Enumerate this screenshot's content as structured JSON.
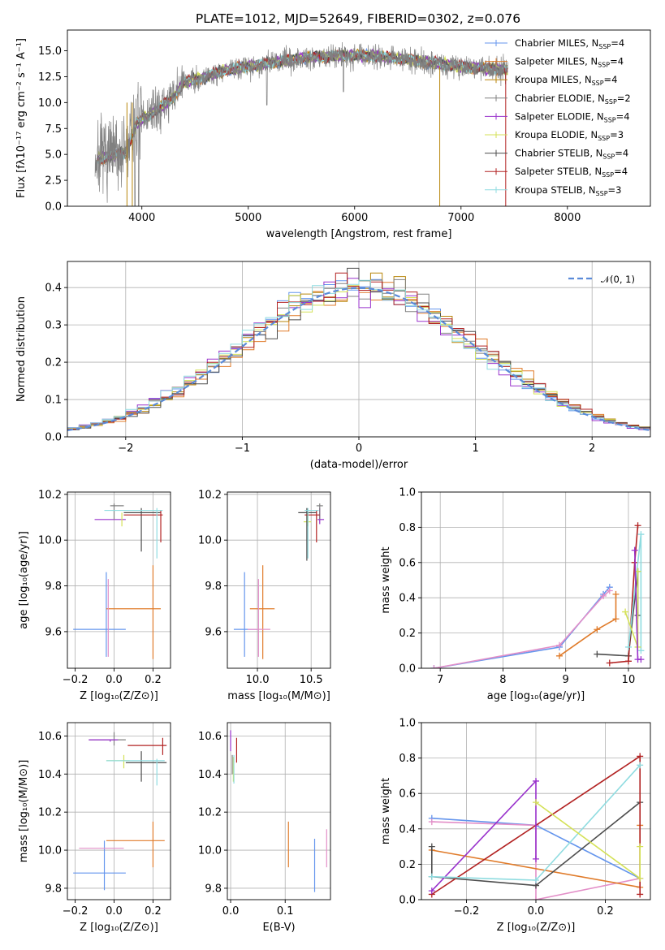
{
  "figure": {
    "title": "PLATE=1012, MJD=52649, FIBERID=0302, z=0.076"
  },
  "palette": {
    "blue": "#6495ed",
    "orange": "#e07b2a",
    "olive": "#b8860b",
    "gray": "#808080",
    "purple": "#9932cc",
    "yellowgreen": "#d4e157",
    "darkgray": "#4d4d4d",
    "darkred": "#b22222",
    "cyan": "#8fdce0",
    "pink": "#e38fc8"
  },
  "models": [
    {
      "name": "Chabrier MILES",
      "n": "4",
      "color": "#6495ed"
    },
    {
      "name": "Salpeter MILES",
      "n": "4",
      "color": "#e07b2a"
    },
    {
      "name": "Kroupa MILES",
      "n": "4",
      "color": "#b8860b"
    },
    {
      "name": "Chabrier ELODIE",
      "n": "2",
      "color": "#808080"
    },
    {
      "name": "Salpeter ELODIE",
      "n": "4",
      "color": "#9932cc"
    },
    {
      "name": "Kroupa ELODIE",
      "n": "3",
      "color": "#d4e157"
    },
    {
      "name": "Chabrier STELIB",
      "n": "4",
      "color": "#4d4d4d"
    },
    {
      "name": "Salpeter STELIB",
      "n": "4",
      "color": "#b22222"
    },
    {
      "name": "Kroupa STELIB",
      "n": "3",
      "color": "#8fdce0"
    }
  ],
  "legend_prefix_n": "N",
  "legend_sub_ssp": "SSP",
  "legend_eq": "=",
  "chart_data": [
    {
      "id": "spectrum",
      "type": "line",
      "xlabel": "wavelength [Angstrom, rest frame]",
      "ylabel": "Flux [fλ10⁻¹⁷ erg cm⁻² s⁻¹ A⁻¹]",
      "xlim": [
        3300,
        8780
      ],
      "ylim": [
        0,
        17
      ],
      "xticks": [
        4000,
        5000,
        6000,
        7000,
        8000
      ],
      "yticks": [
        0.0,
        2.5,
        5.0,
        7.5,
        10.0,
        12.5,
        15.0
      ],
      "grid": false,
      "legend": "right",
      "continuum": [
        [
          3550,
          4.5
        ],
        [
          3700,
          4.8
        ],
        [
          3850,
          5.2
        ],
        [
          3950,
          8.0
        ],
        [
          4100,
          9.0
        ],
        [
          4300,
          10.5
        ],
        [
          4400,
          12.0
        ],
        [
          4600,
          12.5
        ],
        [
          4800,
          13.2
        ],
        [
          5000,
          13.5
        ],
        [
          5200,
          13.8
        ],
        [
          5500,
          14.3
        ],
        [
          5800,
          14.5
        ],
        [
          6000,
          14.6
        ],
        [
          6300,
          14.4
        ],
        [
          6600,
          14.0
        ],
        [
          6900,
          13.6
        ],
        [
          7100,
          13.4
        ],
        [
          7400,
          13.2
        ]
      ],
      "observed_range": [
        3560,
        7440
      ]
    },
    {
      "id": "residuals",
      "type": "histogram",
      "xlabel": "(data-model)/error",
      "ylabel": "Normed distribution",
      "xlim": [
        -2.5,
        2.5
      ],
      "ylim": [
        0,
        0.47
      ],
      "xticks": [
        -2,
        -1,
        0,
        1,
        2
      ],
      "yticks": [
        0.0,
        0.1,
        0.2,
        0.3,
        0.4
      ],
      "grid": true,
      "legend": "top-right",
      "reference_label": "𝒩(0, 1)",
      "bin_width": 0.1
    },
    {
      "id": "age_vs_Z",
      "type": "errorbar",
      "xlabel": "Z [log₁₀(Z/Z⊙)]",
      "ylabel": "age  [log₁₀(age/yr)]",
      "xlim": [
        -0.24,
        0.29
      ],
      "ylim": [
        9.44,
        10.21
      ],
      "xticks": [
        -0.2,
        0.0,
        0.2
      ],
      "xticklabels": [
        "−0.2",
        "0.0",
        "0.2"
      ],
      "yticks": [
        9.6,
        9.8,
        10.0,
        10.2
      ],
      "grid": true,
      "points": [
        {
          "x": -0.05,
          "y": 9.61,
          "xlo": -0.21,
          "xhi": 0.06,
          "ylo": 9.61,
          "yhi": 9.61,
          "color": "#6495ed"
        },
        {
          "x": -0.04,
          "y": 9.67,
          "xlo": -0.04,
          "xhi": -0.04,
          "ylo": 9.49,
          "yhi": 9.86,
          "color": "#6495ed"
        },
        {
          "x": 0.2,
          "y": 9.7,
          "xlo": -0.04,
          "xhi": 0.24,
          "ylo": 9.7,
          "yhi": 9.7,
          "color": "#e07b2a"
        },
        {
          "x": 0.2,
          "y": 9.7,
          "xlo": 0.2,
          "xhi": 0.2,
          "ylo": 9.48,
          "yhi": 9.89,
          "color": "#e07b2a"
        },
        {
          "x": -0.03,
          "y": 9.61,
          "xlo": -0.03,
          "xhi": -0.03,
          "ylo": 9.49,
          "yhi": 9.83,
          "color": "#e38fc8"
        },
        {
          "x": 0.0,
          "y": 10.09,
          "xlo": -0.1,
          "xhi": 0.06,
          "ylo": 10.09,
          "yhi": 10.09,
          "color": "#9932cc"
        },
        {
          "x": 0.0,
          "y": 10.15,
          "xlo": -0.02,
          "xhi": 0.05,
          "ylo": 10.09,
          "yhi": 10.16,
          "color": "#808080"
        },
        {
          "x": 0.04,
          "y": 10.08,
          "xlo": 0.04,
          "xhi": 0.04,
          "ylo": 10.06,
          "yhi": 10.12,
          "color": "#d4e157"
        },
        {
          "x": 0.14,
          "y": 10.12,
          "xlo": 0.05,
          "xhi": 0.24,
          "ylo": 9.95,
          "yhi": 10.14,
          "color": "#4d4d4d"
        },
        {
          "x": 0.24,
          "y": 10.11,
          "xlo": 0.05,
          "xhi": 0.25,
          "ylo": 9.99,
          "yhi": 10.13,
          "color": "#b22222"
        },
        {
          "x": 0.22,
          "y": 10.13,
          "xlo": -0.05,
          "xhi": 0.25,
          "ylo": 9.92,
          "yhi": 10.14,
          "color": "#8fdce0"
        }
      ]
    },
    {
      "id": "age_vs_mass",
      "type": "errorbar",
      "xlabel": "mass [log₁₀(M/M⊙)]",
      "ylabel": "",
      "xlim": [
        9.72,
        10.68
      ],
      "ylim": [
        9.44,
        10.21
      ],
      "xticks": [
        10.0,
        10.5
      ],
      "yticks": [
        9.6,
        9.8,
        10.0,
        10.2
      ],
      "grid": true,
      "points": [
        {
          "x": 9.88,
          "y": 9.61,
          "xlo": 9.78,
          "xhi": 10.0,
          "ylo": 9.49,
          "yhi": 9.86,
          "color": "#6495ed"
        },
        {
          "x": 10.05,
          "y": 9.7,
          "xlo": 9.93,
          "xhi": 10.16,
          "ylo": 9.48,
          "yhi": 9.89,
          "color": "#e07b2a"
        },
        {
          "x": 10.01,
          "y": 9.61,
          "xlo": 9.91,
          "xhi": 10.12,
          "ylo": 9.49,
          "yhi": 9.83,
          "color": "#e38fc8"
        },
        {
          "x": 10.58,
          "y": 10.09,
          "xlo": 10.56,
          "xhi": 10.62,
          "ylo": 10.07,
          "yhi": 10.14,
          "color": "#9932cc"
        },
        {
          "x": 10.58,
          "y": 10.15,
          "xlo": 10.55,
          "xhi": 10.61,
          "ylo": 10.09,
          "yhi": 10.16,
          "color": "#808080"
        },
        {
          "x": 10.47,
          "y": 10.08,
          "xlo": 10.43,
          "xhi": 10.5,
          "ylo": 10.06,
          "yhi": 10.12,
          "color": "#d4e157"
        },
        {
          "x": 10.46,
          "y": 10.12,
          "xlo": 10.38,
          "xhi": 10.55,
          "ylo": 9.91,
          "yhi": 10.14,
          "color": "#4d4d4d"
        },
        {
          "x": 10.55,
          "y": 10.11,
          "xlo": 10.44,
          "xhi": 10.58,
          "ylo": 9.99,
          "yhi": 10.13,
          "color": "#b22222"
        },
        {
          "x": 10.47,
          "y": 10.13,
          "xlo": 10.44,
          "xhi": 10.57,
          "ylo": 9.92,
          "yhi": 10.14,
          "color": "#8fdce0"
        }
      ]
    },
    {
      "id": "weight_vs_age",
      "type": "line",
      "xlabel": "age  [log₁₀(age/yr)]",
      "ylabel": "mass weight",
      "xlim": [
        6.7,
        10.35
      ],
      "ylim": [
        0,
        1.0
      ],
      "xticks": [
        7,
        8,
        9,
        10
      ],
      "yticks": [
        0.0,
        0.2,
        0.4,
        0.6,
        0.8,
        1.0
      ],
      "grid": true,
      "series": [
        {
          "color": "#6495ed",
          "x": [
            6.9,
            8.9,
            9.6,
            9.7
          ],
          "y": [
            0.0,
            0.12,
            0.42,
            0.46
          ]
        },
        {
          "color": "#e38fc8",
          "x": [
            6.9,
            8.9,
            9.6,
            9.7
          ],
          "y": [
            0.0,
            0.13,
            0.41,
            0.44
          ]
        },
        {
          "color": "#e07b2a",
          "x": [
            8.9,
            9.5,
            9.8,
            9.8
          ],
          "y": [
            0.07,
            0.22,
            0.28,
            0.42
          ]
        },
        {
          "color": "#4d4d4d",
          "x": [
            9.5,
            10.0,
            10.15,
            10.15
          ],
          "y": [
            0.08,
            0.07,
            0.55,
            0.3
          ]
        },
        {
          "color": "#b22222",
          "x": [
            9.7,
            10.0,
            10.1,
            10.15
          ],
          "y": [
            0.03,
            0.04,
            0.6,
            0.81
          ]
        },
        {
          "color": "#8fdce0",
          "x": [
            10.0,
            10.2,
            10.2
          ],
          "y": [
            0.12,
            0.76,
            0.1
          ]
        },
        {
          "color": "#d4e157",
          "x": [
            9.95,
            10.15,
            10.15
          ],
          "y": [
            0.32,
            0.12,
            0.55
          ]
        },
        {
          "color": "#9932cc",
          "x": [
            10.1,
            10.15,
            10.2
          ],
          "y": [
            0.67,
            0.05,
            0.05
          ]
        }
      ]
    },
    {
      "id": "mass_vs_Z",
      "type": "errorbar",
      "xlabel": "Z [log₁₀(Z/Z⊙)]",
      "ylabel": "mass [log₁₀(M/M⊙)]",
      "xlim": [
        -0.24,
        0.29
      ],
      "ylim": [
        9.74,
        10.67
      ],
      "xticks": [
        -0.2,
        0.0,
        0.2
      ],
      "xticklabels": [
        "−0.2",
        "0.0",
        "0.2"
      ],
      "yticks": [
        9.8,
        10.0,
        10.2,
        10.4,
        10.6
      ],
      "grid": true,
      "points": [
        {
          "x": -0.05,
          "y": 9.88,
          "xlo": -0.21,
          "xhi": 0.06,
          "ylo": 9.88,
          "yhi": 9.88,
          "color": "#6495ed"
        },
        {
          "x": -0.05,
          "y": 9.95,
          "xlo": -0.05,
          "xhi": -0.05,
          "ylo": 9.79,
          "yhi": 10.05,
          "color": "#6495ed"
        },
        {
          "x": 0.2,
          "y": 10.05,
          "xlo": -0.04,
          "xhi": 0.26,
          "ylo": 9.91,
          "yhi": 10.15,
          "color": "#e07b2a"
        },
        {
          "x": 0.0,
          "y": 10.01,
          "xlo": -0.18,
          "xhi": 0.05,
          "ylo": 10.01,
          "yhi": 10.01,
          "color": "#e38fc8"
        },
        {
          "x": 0.0,
          "y": 10.58,
          "xlo": -0.13,
          "xhi": 0.06,
          "ylo": 10.55,
          "yhi": 10.62,
          "color": "#808080"
        },
        {
          "x": -0.02,
          "y": 10.58,
          "xlo": -0.13,
          "xhi": 0.02,
          "ylo": 10.57,
          "yhi": 10.58,
          "color": "#9932cc"
        },
        {
          "x": 0.05,
          "y": 10.47,
          "xlo": -0.04,
          "xhi": 0.08,
          "ylo": 10.43,
          "yhi": 10.5,
          "color": "#d4e157"
        },
        {
          "x": 0.14,
          "y": 10.46,
          "xlo": 0.06,
          "xhi": 0.27,
          "ylo": 10.36,
          "yhi": 10.52,
          "color": "#4d4d4d"
        },
        {
          "x": 0.25,
          "y": 10.55,
          "xlo": 0.07,
          "xhi": 0.27,
          "ylo": 10.5,
          "yhi": 10.59,
          "color": "#b22222"
        },
        {
          "x": 0.22,
          "y": 10.47,
          "xlo": -0.04,
          "xhi": 0.26,
          "ylo": 10.34,
          "yhi": 10.48,
          "color": "#8fdce0"
        }
      ]
    },
    {
      "id": "mass_vs_EBV",
      "type": "errorbar",
      "xlabel": "E(B-V)",
      "ylabel": "",
      "xlim": [
        -0.006,
        0.183
      ],
      "ylim": [
        9.74,
        10.67
      ],
      "xticks": [
        0.0,
        0.1
      ],
      "yticks": [
        9.8,
        10.0,
        10.2,
        10.4,
        10.6
      ],
      "grid": true,
      "points": [
        {
          "x": 0.0,
          "y": 10.58,
          "xlo": 0.0,
          "xhi": 0.0,
          "ylo": 10.52,
          "yhi": 10.63,
          "color": "#9932cc"
        },
        {
          "x": 0.003,
          "y": 10.46,
          "xlo": 0.003,
          "xhi": 0.003,
          "ylo": 10.4,
          "yhi": 10.5,
          "color": "#808080"
        },
        {
          "x": 0.005,
          "y": 10.44,
          "xlo": 0.005,
          "xhi": 0.005,
          "ylo": 10.36,
          "yhi": 10.49,
          "color": "#d4e157"
        },
        {
          "x": 0.006,
          "y": 10.42,
          "xlo": 0.006,
          "xhi": 0.006,
          "ylo": 10.35,
          "yhi": 10.5,
          "color": "#8fdce0"
        },
        {
          "x": 0.011,
          "y": 10.52,
          "xlo": 0.011,
          "xhi": 0.011,
          "ylo": 10.46,
          "yhi": 10.59,
          "color": "#b22222"
        },
        {
          "x": 0.106,
          "y": 10.03,
          "xlo": 0.106,
          "xhi": 0.106,
          "ylo": 9.91,
          "yhi": 10.15,
          "color": "#e07b2a"
        },
        {
          "x": 0.154,
          "y": 9.92,
          "xlo": 0.154,
          "xhi": 0.154,
          "ylo": 9.78,
          "yhi": 10.06,
          "color": "#6495ed"
        },
        {
          "x": 0.176,
          "y": 10.01,
          "xlo": 0.176,
          "xhi": 0.176,
          "ylo": 9.91,
          "yhi": 10.11,
          "color": "#e38fc8"
        }
      ]
    },
    {
      "id": "weight_vs_Z",
      "type": "line",
      "xlabel": "Z [log₁₀(Z/Z⊙)]",
      "ylabel": "mass weight",
      "xlim": [
        -0.33,
        0.33
      ],
      "ylim": [
        0,
        1.0
      ],
      "xticks": [
        -0.2,
        0.0,
        0.2
      ],
      "xticklabels": [
        "−0.2",
        "0.0",
        "0.2"
      ],
      "yticks": [
        0.0,
        0.2,
        0.4,
        0.6,
        0.8,
        1.0
      ],
      "grid": true,
      "series": [
        {
          "color": "#6495ed",
          "x": [
            -0.3,
            0.0,
            0.3
          ],
          "y": [
            0.46,
            0.42,
            0.12
          ]
        },
        {
          "color": "#e38fc8",
          "x": [
            -0.3,
            0.0,
            0.0,
            0.3
          ],
          "y": [
            0.44,
            0.42,
            0.0,
            0.12
          ]
        },
        {
          "color": "#e07b2a",
          "x": [
            -0.3,
            0.3,
            0.3
          ],
          "y": [
            0.28,
            0.07,
            0.42
          ]
        },
        {
          "color": "#4d4d4d",
          "x": [
            -0.3,
            -0.3,
            0.0,
            0.3
          ],
          "y": [
            0.3,
            0.13,
            0.08,
            0.55
          ]
        },
        {
          "color": "#b22222",
          "x": [
            -0.3,
            0.3,
            0.3
          ],
          "y": [
            0.03,
            0.81,
            0.03
          ]
        },
        {
          "color": "#9932cc",
          "x": [
            -0.3,
            0.0,
            0.0
          ],
          "y": [
            0.05,
            0.67,
            0.23
          ]
        },
        {
          "color": "#8fdce0",
          "x": [
            -0.3,
            0.0,
            0.3
          ],
          "y": [
            0.13,
            0.11,
            0.76
          ]
        },
        {
          "color": "#d4e157",
          "x": [
            0.0,
            0.3,
            0.3
          ],
          "y": [
            0.55,
            0.12,
            0.3
          ]
        }
      ]
    }
  ]
}
